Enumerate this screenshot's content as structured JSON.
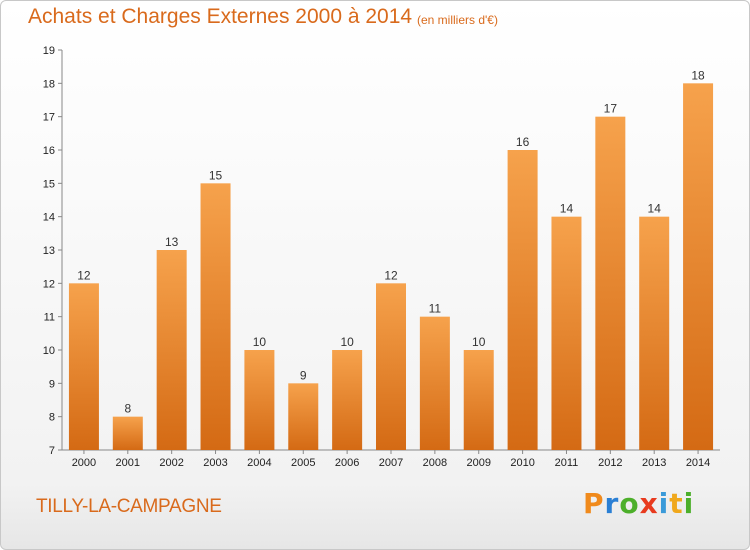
{
  "header": {
    "title": "Achats et Charges Externes 2000 à 2014",
    "unit": "(en milliers d'€)"
  },
  "footer": {
    "commune": "TILLY-LA-CAMPAGNE",
    "logo_text": "Proxiti"
  },
  "colors": {
    "bar_top": "#f6a24c",
    "bar_bottom": "#d46a14",
    "accent_text": "#d96a1c"
  },
  "chart_data": {
    "type": "bar",
    "categories": [
      "2000",
      "2001",
      "2002",
      "2003",
      "2004",
      "2005",
      "2006",
      "2007",
      "2008",
      "2009",
      "2010",
      "2011",
      "2012",
      "2013",
      "2014"
    ],
    "values": [
      12,
      8,
      13,
      15,
      10,
      9,
      10,
      12,
      11,
      10,
      16,
      14,
      17,
      14,
      18
    ],
    "ylim": [
      7,
      19
    ],
    "yticks": [
      7,
      8,
      9,
      10,
      11,
      12,
      13,
      14,
      15,
      16,
      17,
      18,
      19
    ],
    "grid": false,
    "legend": "none",
    "data_labels": true
  }
}
